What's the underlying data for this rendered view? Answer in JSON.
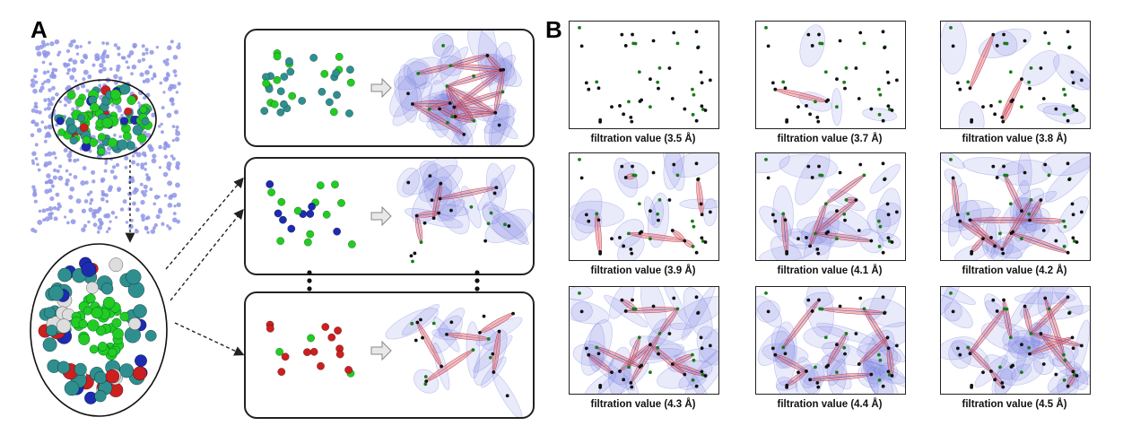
{
  "panel_a": {
    "label": "A"
  },
  "panel_b": {
    "label": "B",
    "captions": [
      "filtration value (3.5 Å)",
      "filtration value (3.7 Å)",
      "filtration value (3.8 Å)",
      "filtration value (3.9 Å)",
      "filtration value (4.1 Å)",
      "filtration value (4.2 Å)",
      "filtration value (4.3 Å)",
      "filtration value (4.4 Å)",
      "filtration value (4.5 Å)"
    ]
  },
  "colors": {
    "cloud": "#8f95e6",
    "carbon": "#2f8f8f",
    "core": "#22cc22",
    "nitrogen": "#1d2bb0",
    "oxygen": "#cc1f1f",
    "hydrogen": "#dddddd",
    "edge": "#e0707a",
    "ellipse": "#7d84e0",
    "dot": "#111111",
    "dot_core": "#1a7a1a"
  },
  "icons": {
    "arrow": "right-arrow-icon",
    "ellipsis": "vertical-ellipsis-icon",
    "dashed": "dashed-arrow-icon"
  }
}
